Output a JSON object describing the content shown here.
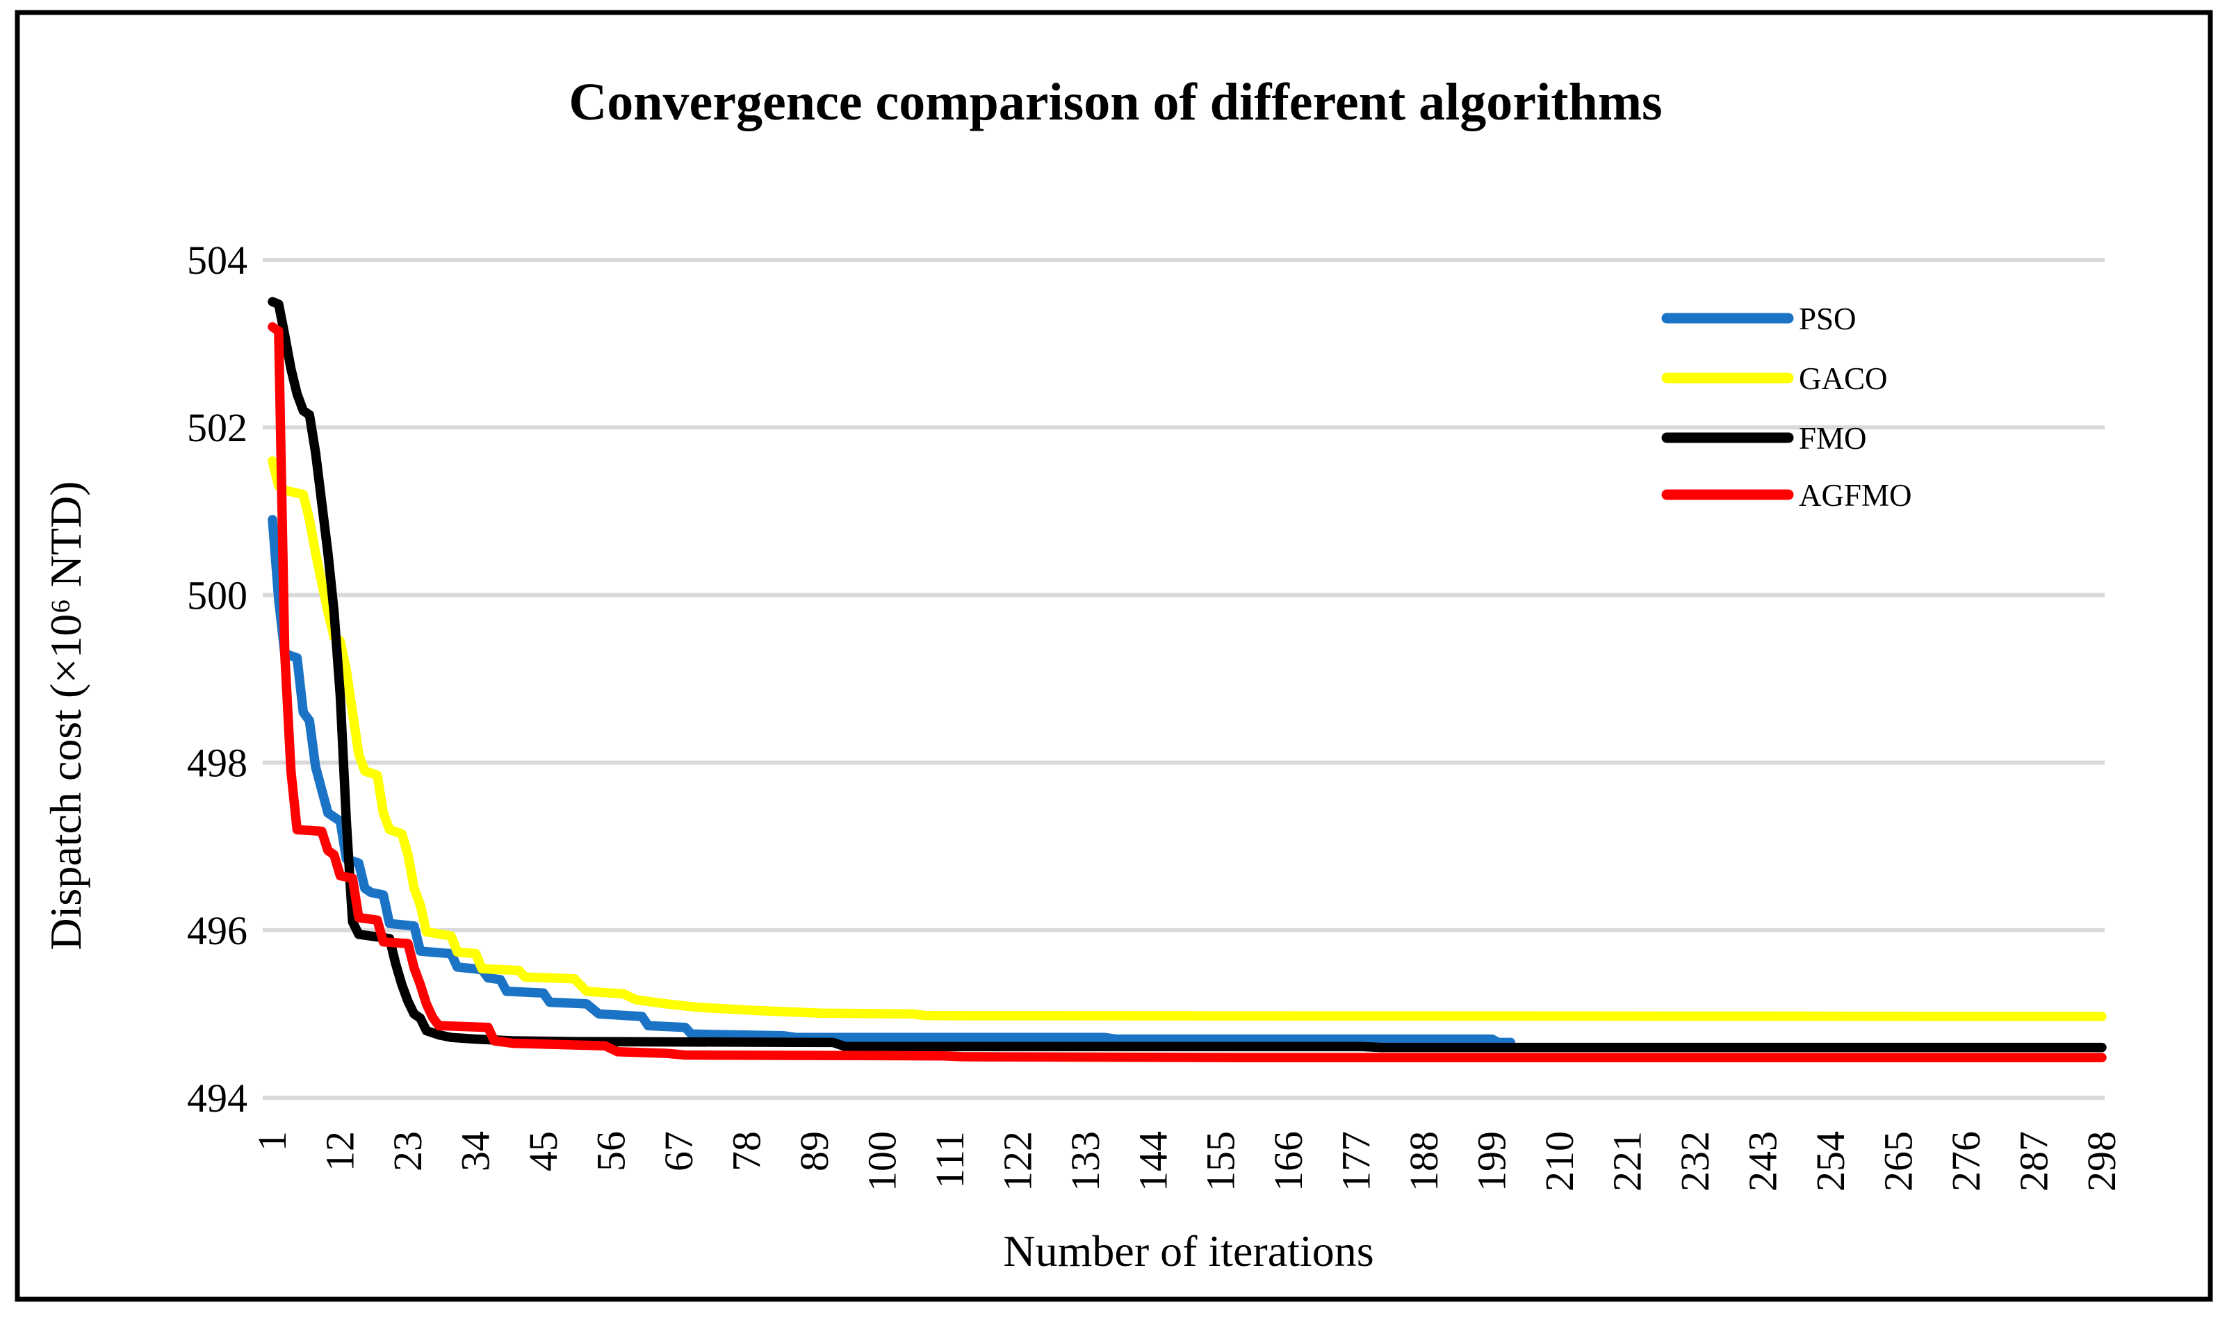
{
  "figure": {
    "border_color": "#000000",
    "background": "#ffffff"
  },
  "colors": {
    "gridline": "#d9d9d9",
    "text": "#000000",
    "pso": "#1b73c6",
    "gaco": "#ffff00",
    "fmo": "#000000",
    "agfmo": "#ff0000"
  },
  "chart_data": {
    "type": "line",
    "title": "Convergence comparison of different algorithms",
    "xlabel": "Number of iterations",
    "ylabel": "Dispatch cost (×10⁶ NTD)",
    "xlim": [
      1,
      298
    ],
    "ylim": [
      494,
      504
    ],
    "grid": "horizontal",
    "legend_position": "upper-right-inside",
    "x_ticks": [
      1,
      12,
      23,
      34,
      45,
      56,
      67,
      78,
      89,
      100,
      111,
      122,
      133,
      144,
      155,
      166,
      177,
      188,
      199,
      210,
      221,
      232,
      243,
      254,
      265,
      276,
      287,
      298
    ],
    "y_ticks": [
      494,
      496,
      498,
      500,
      502,
      504
    ],
    "series": [
      {
        "name": "PSO",
        "color_key": "pso",
        "points": [
          [
            1,
            500.9
          ],
          [
            2,
            499.95
          ],
          [
            3,
            499.3
          ],
          [
            5,
            499.25
          ],
          [
            6,
            498.6
          ],
          [
            7,
            498.5
          ],
          [
            8,
            497.95
          ],
          [
            10,
            497.4
          ],
          [
            12,
            497.3
          ],
          [
            13,
            496.85
          ],
          [
            15,
            496.8
          ],
          [
            16,
            496.5
          ],
          [
            17,
            496.45
          ],
          [
            19,
            496.42
          ],
          [
            20,
            496.08
          ],
          [
            24,
            496.05
          ],
          [
            25,
            495.75
          ],
          [
            30,
            495.72
          ],
          [
            31,
            495.56
          ],
          [
            35,
            495.53
          ],
          [
            36,
            495.43
          ],
          [
            38,
            495.41
          ],
          [
            39,
            495.27
          ],
          [
            45,
            495.25
          ],
          [
            46,
            495.14
          ],
          [
            52,
            495.12
          ],
          [
            54,
            495.0
          ],
          [
            61,
            494.97
          ],
          [
            62,
            494.86
          ],
          [
            68,
            494.84
          ],
          [
            69,
            494.76
          ],
          [
            84,
            494.74
          ],
          [
            86,
            494.72
          ],
          [
            136,
            494.72
          ],
          [
            138,
            494.7
          ],
          [
            199,
            494.7
          ],
          [
            200,
            494.66
          ],
          [
            202,
            494.66
          ]
        ]
      },
      {
        "name": "GACO",
        "color_key": "gaco",
        "points": [
          [
            1,
            501.6
          ],
          [
            2,
            501.3
          ],
          [
            3,
            501.25
          ],
          [
            6,
            501.2
          ],
          [
            7,
            500.9
          ],
          [
            8,
            500.5
          ],
          [
            9,
            500.15
          ],
          [
            10,
            499.8
          ],
          [
            11,
            499.5
          ],
          [
            12,
            499.45
          ],
          [
            13,
            499.1
          ],
          [
            14,
            498.6
          ],
          [
            15,
            498.1
          ],
          [
            16,
            497.9
          ],
          [
            18,
            497.85
          ],
          [
            19,
            497.4
          ],
          [
            20,
            497.2
          ],
          [
            22,
            497.15
          ],
          [
            23,
            496.9
          ],
          [
            24,
            496.5
          ],
          [
            25,
            496.3
          ],
          [
            26,
            495.98
          ],
          [
            30,
            495.93
          ],
          [
            31,
            495.74
          ],
          [
            34,
            495.72
          ],
          [
            35,
            495.54
          ],
          [
            41,
            495.52
          ],
          [
            42,
            495.44
          ],
          [
            50,
            495.42
          ],
          [
            52,
            495.27
          ],
          [
            58,
            495.24
          ],
          [
            60,
            495.17
          ],
          [
            65,
            495.12
          ],
          [
            70,
            495.08
          ],
          [
            80,
            495.04
          ],
          [
            90,
            495.01
          ],
          [
            105,
            495.0
          ],
          [
            107,
            494.98
          ],
          [
            298,
            494.97
          ]
        ]
      },
      {
        "name": "FMO",
        "color_key": "fmo",
        "points": [
          [
            1,
            503.5
          ],
          [
            2,
            503.47
          ],
          [
            3,
            503.1
          ],
          [
            4,
            502.7
          ],
          [
            5,
            502.4
          ],
          [
            6,
            502.2
          ],
          [
            7,
            502.15
          ],
          [
            8,
            501.7
          ],
          [
            9,
            501.1
          ],
          [
            10,
            500.5
          ],
          [
            11,
            499.8
          ],
          [
            12,
            498.8
          ],
          [
            13,
            497.3
          ],
          [
            14,
            496.1
          ],
          [
            15,
            495.95
          ],
          [
            20,
            495.9
          ],
          [
            21,
            495.6
          ],
          [
            22,
            495.35
          ],
          [
            23,
            495.15
          ],
          [
            24,
            495.0
          ],
          [
            25,
            494.95
          ],
          [
            26,
            494.8
          ],
          [
            28,
            494.75
          ],
          [
            30,
            494.72
          ],
          [
            34,
            494.7
          ],
          [
            40,
            494.68
          ],
          [
            50,
            494.67
          ],
          [
            92,
            494.66
          ],
          [
            94,
            494.61
          ],
          [
            178,
            494.61
          ],
          [
            181,
            494.6
          ],
          [
            298,
            494.6
          ]
        ]
      },
      {
        "name": "AGFMO",
        "color_key": "agfmo",
        "points": [
          [
            1,
            503.2
          ],
          [
            2,
            503.15
          ],
          [
            3,
            499.3
          ],
          [
            4,
            497.9
          ],
          [
            5,
            497.2
          ],
          [
            9,
            497.18
          ],
          [
            10,
            496.95
          ],
          [
            11,
            496.9
          ],
          [
            12,
            496.65
          ],
          [
            14,
            496.62
          ],
          [
            15,
            496.15
          ],
          [
            18,
            496.12
          ],
          [
            19,
            495.86
          ],
          [
            23,
            495.84
          ],
          [
            24,
            495.55
          ],
          [
            25,
            495.35
          ],
          [
            26,
            495.12
          ],
          [
            27,
            494.96
          ],
          [
            28,
            494.86
          ],
          [
            36,
            494.84
          ],
          [
            37,
            494.68
          ],
          [
            40,
            494.65
          ],
          [
            55,
            494.62
          ],
          [
            57,
            494.55
          ],
          [
            65,
            494.53
          ],
          [
            68,
            494.51
          ],
          [
            110,
            494.5
          ],
          [
            113,
            494.49
          ],
          [
            157,
            494.48
          ],
          [
            298,
            494.48
          ]
        ]
      }
    ]
  }
}
